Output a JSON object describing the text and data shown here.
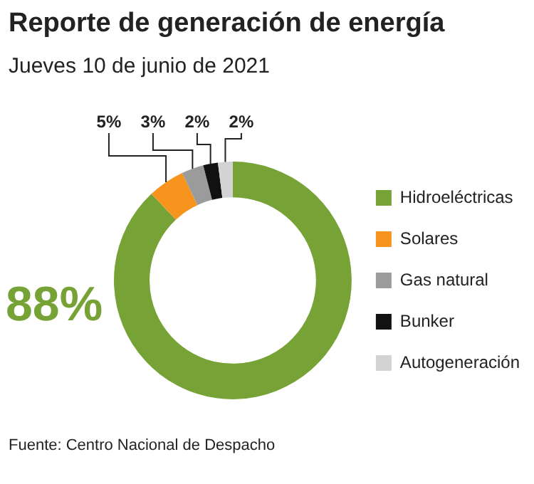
{
  "chart_data": {
    "type": "donut",
    "title": "Reporte de generación de energía",
    "subtitle": "Jueves 10 de junio de 2021",
    "categories": [
      "Hidroeléctricas",
      "Solares",
      "Gas natural",
      "Bunker",
      "Autogeneración"
    ],
    "values": [
      88,
      5,
      3,
      2,
      2
    ],
    "colors": [
      "#77a236",
      "#f7941d",
      "#9b9b9b",
      "#111111",
      "#d3d3d3"
    ],
    "value_labels": [
      "88%",
      "5%",
      "3%",
      "2%",
      "2%"
    ],
    "legend": "right",
    "annotations": [
      "Fuente: Centro Nacional de Despacho"
    ]
  }
}
